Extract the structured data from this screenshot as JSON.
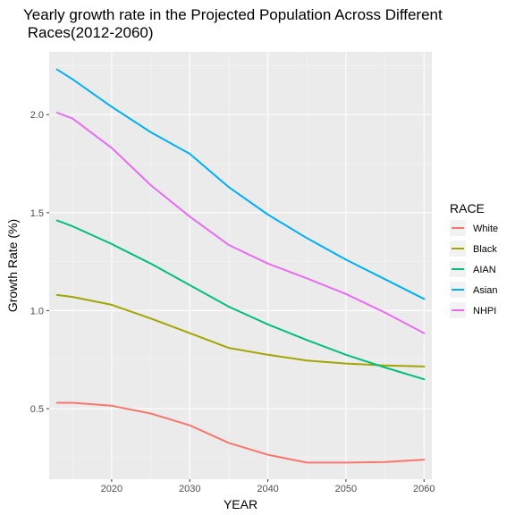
{
  "chart_data": {
    "type": "line",
    "title_line1": "Yearly growth rate in the Projected Population Across Different",
    "title_line2": " Races(2012-2060)",
    "xlabel": "YEAR",
    "ylabel": "Growth Rate (%)",
    "xlim": [
      2012,
      2061
    ],
    "ylim": [
      0.14,
      2.32
    ],
    "x_ticks": [
      2020,
      2030,
      2040,
      2050,
      2060
    ],
    "y_ticks": [
      0.5,
      1.0,
      1.5,
      2.0
    ],
    "y_tick_labels": [
      "0.5",
      "1.0",
      "1.5",
      "2.0"
    ],
    "grid": true,
    "legend": {
      "title": "RACE",
      "position": "right"
    },
    "x": [
      2013,
      2015,
      2020,
      2025,
      2030,
      2035,
      2040,
      2045,
      2050,
      2055,
      2060
    ],
    "series": [
      {
        "name": "White",
        "color": "#F8766D",
        "values": [
          0.53,
          0.53,
          0.515,
          0.475,
          0.415,
          0.325,
          0.265,
          0.225,
          0.225,
          0.228,
          0.24
        ]
      },
      {
        "name": "Black",
        "color": "#A3A500",
        "values": [
          1.08,
          1.07,
          1.03,
          0.96,
          0.885,
          0.81,
          0.775,
          0.745,
          0.73,
          0.72,
          0.715
        ]
      },
      {
        "name": "AIAN",
        "color": "#00BF7D",
        "values": [
          1.46,
          1.43,
          1.34,
          1.24,
          1.13,
          1.02,
          0.93,
          0.85,
          0.775,
          0.71,
          0.65
        ]
      },
      {
        "name": "Asian",
        "color": "#00B0F6",
        "values": [
          2.23,
          2.18,
          2.04,
          1.91,
          1.8,
          1.63,
          1.49,
          1.37,
          1.26,
          1.16,
          1.06
        ]
      },
      {
        "name": "NHPI",
        "color": "#E76BF3",
        "values": [
          2.01,
          1.98,
          1.83,
          1.64,
          1.48,
          1.335,
          1.24,
          1.165,
          1.085,
          0.99,
          0.885
        ]
      }
    ]
  }
}
